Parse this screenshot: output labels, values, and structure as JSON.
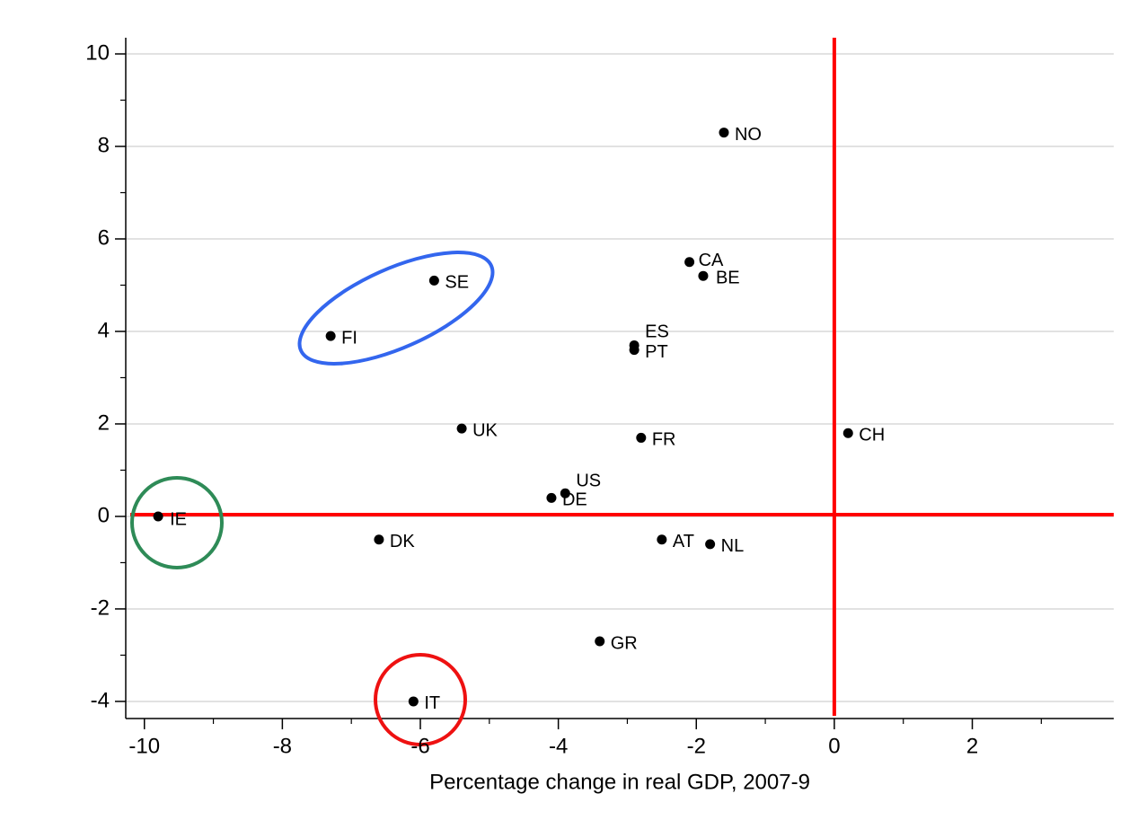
{
  "chart_data": {
    "type": "scatter",
    "x_label": "Percentage change in real GDP, 2007-9",
    "labels": [
      "NO",
      "CA",
      "BE",
      "SE",
      "FI",
      "ES",
      "PT",
      "UK",
      "FR",
      "CH",
      "US",
      "DE",
      "IE",
      "DK",
      "AT",
      "NL",
      "GR",
      "IT"
    ],
    "x": [
      -1.6,
      -2.1,
      -1.9,
      -5.8,
      -7.3,
      -2.9,
      -2.9,
      -5.4,
      -2.8,
      0.2,
      -3.9,
      -4.1,
      -9.8,
      -6.6,
      -2.5,
      -1.8,
      -3.4,
      -6.1
    ],
    "y": [
      8.3,
      5.5,
      5.2,
      5.1,
      3.9,
      3.7,
      3.6,
      1.9,
      1.7,
      1.8,
      0.5,
      0.4,
      0.0,
      -0.5,
      -0.5,
      -0.6,
      -2.7,
      -4.0
    ],
    "color": "#000000",
    "xlim": [
      -10.27,
      4.05
    ],
    "ylim": [
      -4.37,
      10.35
    ],
    "xticks": [
      -10,
      -8,
      -6,
      -4,
      -2,
      0,
      2
    ],
    "yticks": [
      -4,
      -2,
      0,
      2,
      4,
      6,
      8,
      10
    ],
    "xminorticks": [
      -9,
      -7,
      -5,
      -3,
      -1,
      1,
      3
    ],
    "yminorticks": [
      -3,
      -1,
      1,
      3,
      5,
      7,
      9
    ],
    "grid": true,
    "reference_lines": {
      "x": 0,
      "y": 0,
      "color": "#ff0000"
    }
  }
}
